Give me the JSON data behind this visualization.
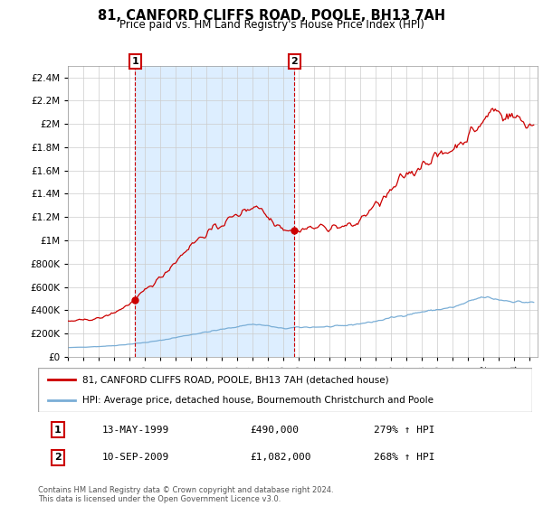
{
  "title": "81, CANFORD CLIFFS ROAD, POOLE, BH13 7AH",
  "subtitle": "Price paid vs. HM Land Registry's House Price Index (HPI)",
  "legend_line1": "81, CANFORD CLIFFS ROAD, POOLE, BH13 7AH (detached house)",
  "legend_line2": "HPI: Average price, detached house, Bournemouth Christchurch and Poole",
  "annotation1_date": "13-MAY-1999",
  "annotation1_price": "£490,000",
  "annotation1_hpi": "279% ↑ HPI",
  "annotation2_date": "10-SEP-2009",
  "annotation2_price": "£1,082,000",
  "annotation2_hpi": "268% ↑ HPI",
  "footer": "Contains HM Land Registry data © Crown copyright and database right 2024.\nThis data is licensed under the Open Government Licence v3.0.",
  "red_color": "#cc0000",
  "blue_color": "#7aaed6",
  "shade_color": "#ddeeff",
  "ylim_max": 2500000,
  "sale1_x": 1999.37,
  "sale1_y": 490000,
  "sale2_x": 2009.71,
  "sale2_y": 1082000,
  "xmin": 1995.0,
  "xmax": 2025.5,
  "yticks": [
    0,
    200000,
    400000,
    600000,
    800000,
    1000000,
    1200000,
    1400000,
    1600000,
    1800000,
    2000000,
    2200000,
    2400000
  ]
}
